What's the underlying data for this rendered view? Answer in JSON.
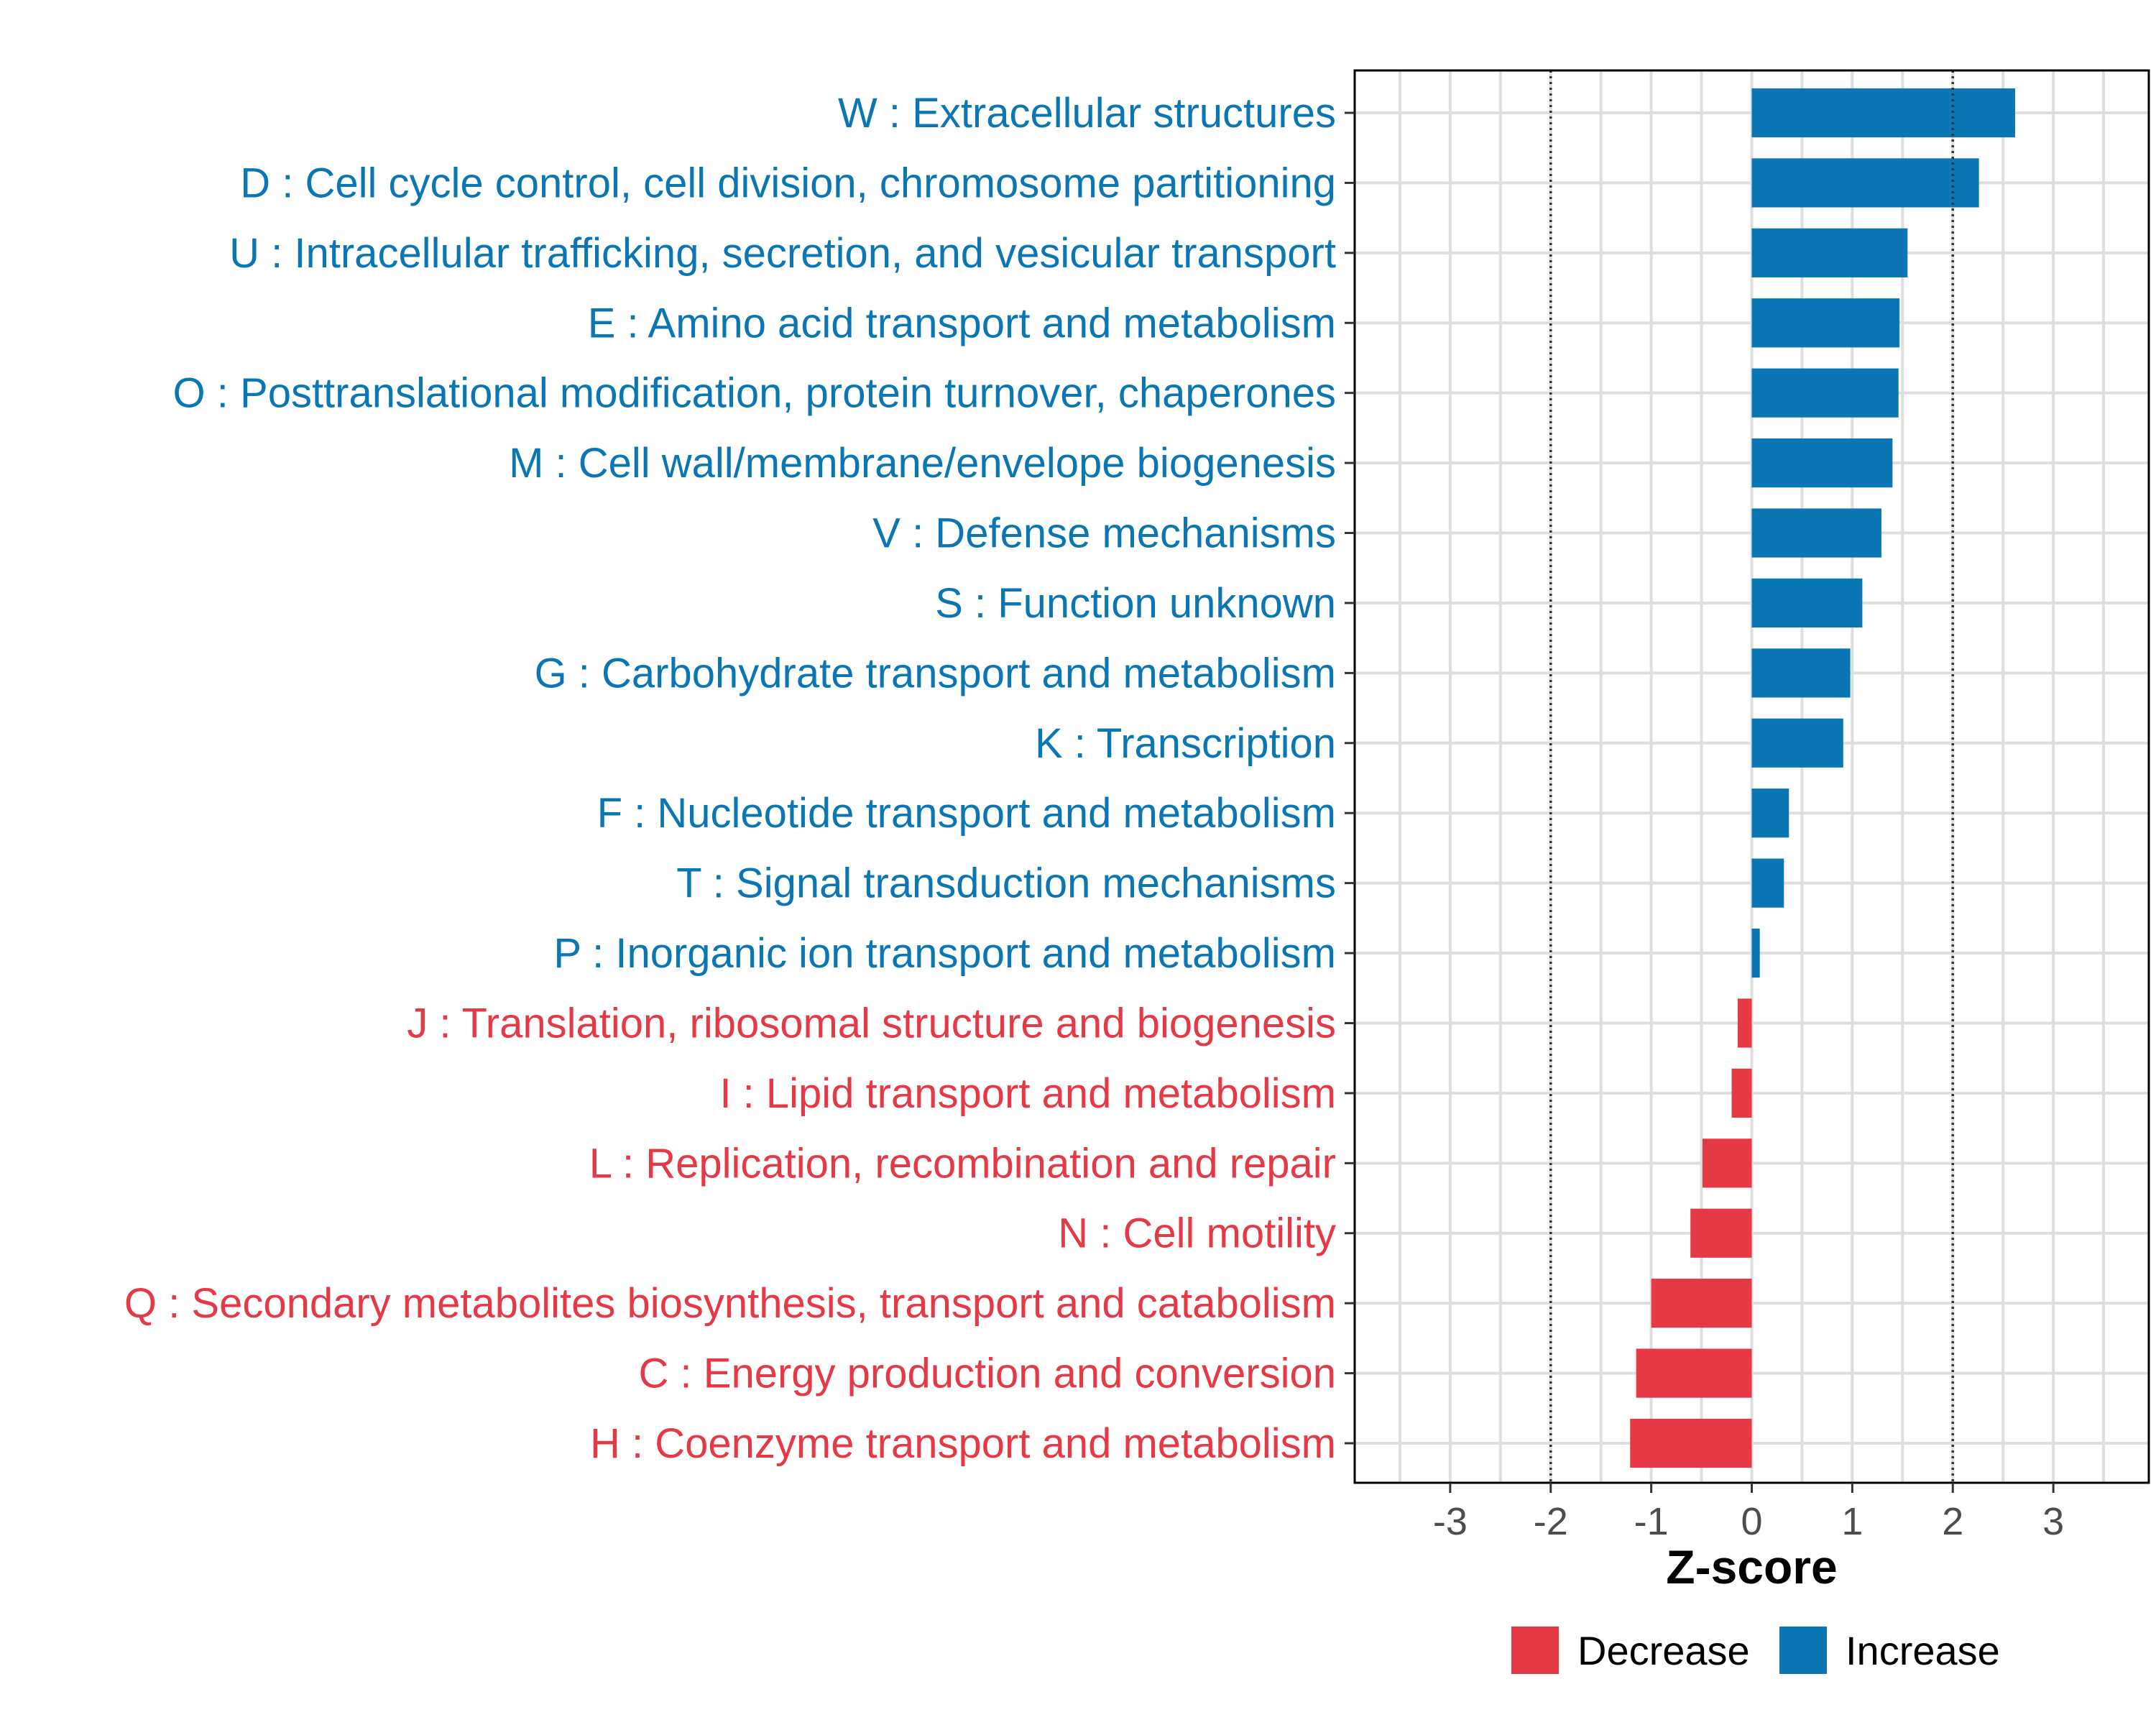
{
  "chart_data": {
    "type": "bar",
    "orientation": "horizontal",
    "xlabel": "Z-score",
    "ylabel": "",
    "xlim": [
      -3.95,
      3.95
    ],
    "xticks": [
      -3,
      -2,
      -1,
      0,
      1,
      2,
      3
    ],
    "xtick_labels": [
      "-3",
      "-2",
      "-1",
      "0",
      "1",
      "2",
      "3"
    ],
    "reference_lines": [
      -2,
      2
    ],
    "grid": true,
    "legend_position": "bottom",
    "colors": {
      "Decrease": "#e63946",
      "Increase": "#0a76b4"
    },
    "legend": [
      {
        "label": "Decrease",
        "color": "#e63946"
      },
      {
        "label": "Increase",
        "color": "#0a76b4"
      }
    ],
    "categories": [
      {
        "label": "W : Extracellular structures",
        "value": 2.62,
        "group": "Increase"
      },
      {
        "label": "D : Cell cycle control, cell division, chromosome partitioning",
        "value": 2.26,
        "group": "Increase"
      },
      {
        "label": "U : Intracellular trafficking, secretion, and vesicular transport",
        "value": 1.55,
        "group": "Increase"
      },
      {
        "label": "E : Amino acid transport and metabolism",
        "value": 1.47,
        "group": "Increase"
      },
      {
        "label": "O : Posttranslational modification, protein turnover, chaperones",
        "value": 1.46,
        "group": "Increase"
      },
      {
        "label": "M : Cell wall/membrane/envelope biogenesis",
        "value": 1.4,
        "group": "Increase"
      },
      {
        "label": "V : Defense mechanisms",
        "value": 1.29,
        "group": "Increase"
      },
      {
        "label": "S : Function unknown",
        "value": 1.1,
        "group": "Increase"
      },
      {
        "label": "G : Carbohydrate transport and metabolism",
        "value": 0.98,
        "group": "Increase"
      },
      {
        "label": "K : Transcription",
        "value": 0.91,
        "group": "Increase"
      },
      {
        "label": "F : Nucleotide transport and metabolism",
        "value": 0.37,
        "group": "Increase"
      },
      {
        "label": "T : Signal transduction mechanisms",
        "value": 0.32,
        "group": "Increase"
      },
      {
        "label": "P : Inorganic ion transport and metabolism",
        "value": 0.08,
        "group": "Increase"
      },
      {
        "label": "J : Translation, ribosomal structure and biogenesis",
        "value": -0.14,
        "group": "Decrease"
      },
      {
        "label": "I : Lipid transport and metabolism",
        "value": -0.2,
        "group": "Decrease"
      },
      {
        "label": "L : Replication, recombination and repair",
        "value": -0.49,
        "group": "Decrease"
      },
      {
        "label": "N : Cell motility",
        "value": -0.61,
        "group": "Decrease"
      },
      {
        "label": "Q : Secondary metabolites biosynthesis, transport and catabolism",
        "value": -1.0,
        "group": "Decrease"
      },
      {
        "label": "C : Energy production and conversion",
        "value": -1.15,
        "group": "Decrease"
      },
      {
        "label": "H : Coenzyme transport and metabolism",
        "value": -1.21,
        "group": "Decrease"
      }
    ]
  }
}
